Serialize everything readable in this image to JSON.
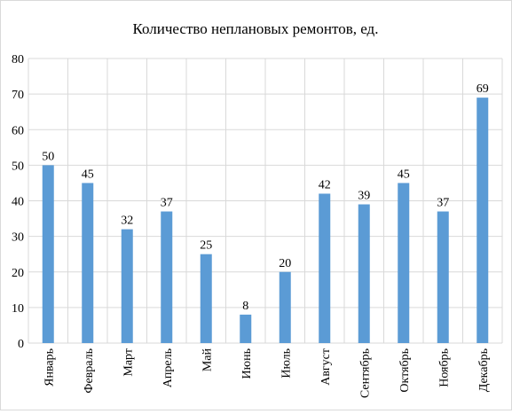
{
  "chart_data": {
    "type": "bar",
    "title": "Количество неплановых ремонтов, ед.",
    "categories": [
      "Январь",
      "Февраль",
      "Март",
      "Апрель",
      "Май",
      "Июнь",
      "Июль",
      "Август",
      "Сентябрь",
      "Октябрь",
      "Ноябрь",
      "Декабрь"
    ],
    "values": [
      50,
      45,
      32,
      37,
      25,
      8,
      20,
      42,
      39,
      45,
      37,
      69
    ],
    "data_labels": [
      "50",
      "45",
      "32",
      "37",
      "25",
      "8",
      "20",
      "42",
      "39",
      "45",
      "37",
      "69"
    ],
    "y_ticks": [
      "0",
      "10",
      "20",
      "30",
      "40",
      "50",
      "60",
      "70",
      "80"
    ],
    "ylim": [
      0,
      80
    ],
    "grid": true,
    "legend": "none",
    "colors": {
      "bar": "#5b9bd5",
      "grid": "#d9d9d9",
      "text": "#000000"
    }
  }
}
